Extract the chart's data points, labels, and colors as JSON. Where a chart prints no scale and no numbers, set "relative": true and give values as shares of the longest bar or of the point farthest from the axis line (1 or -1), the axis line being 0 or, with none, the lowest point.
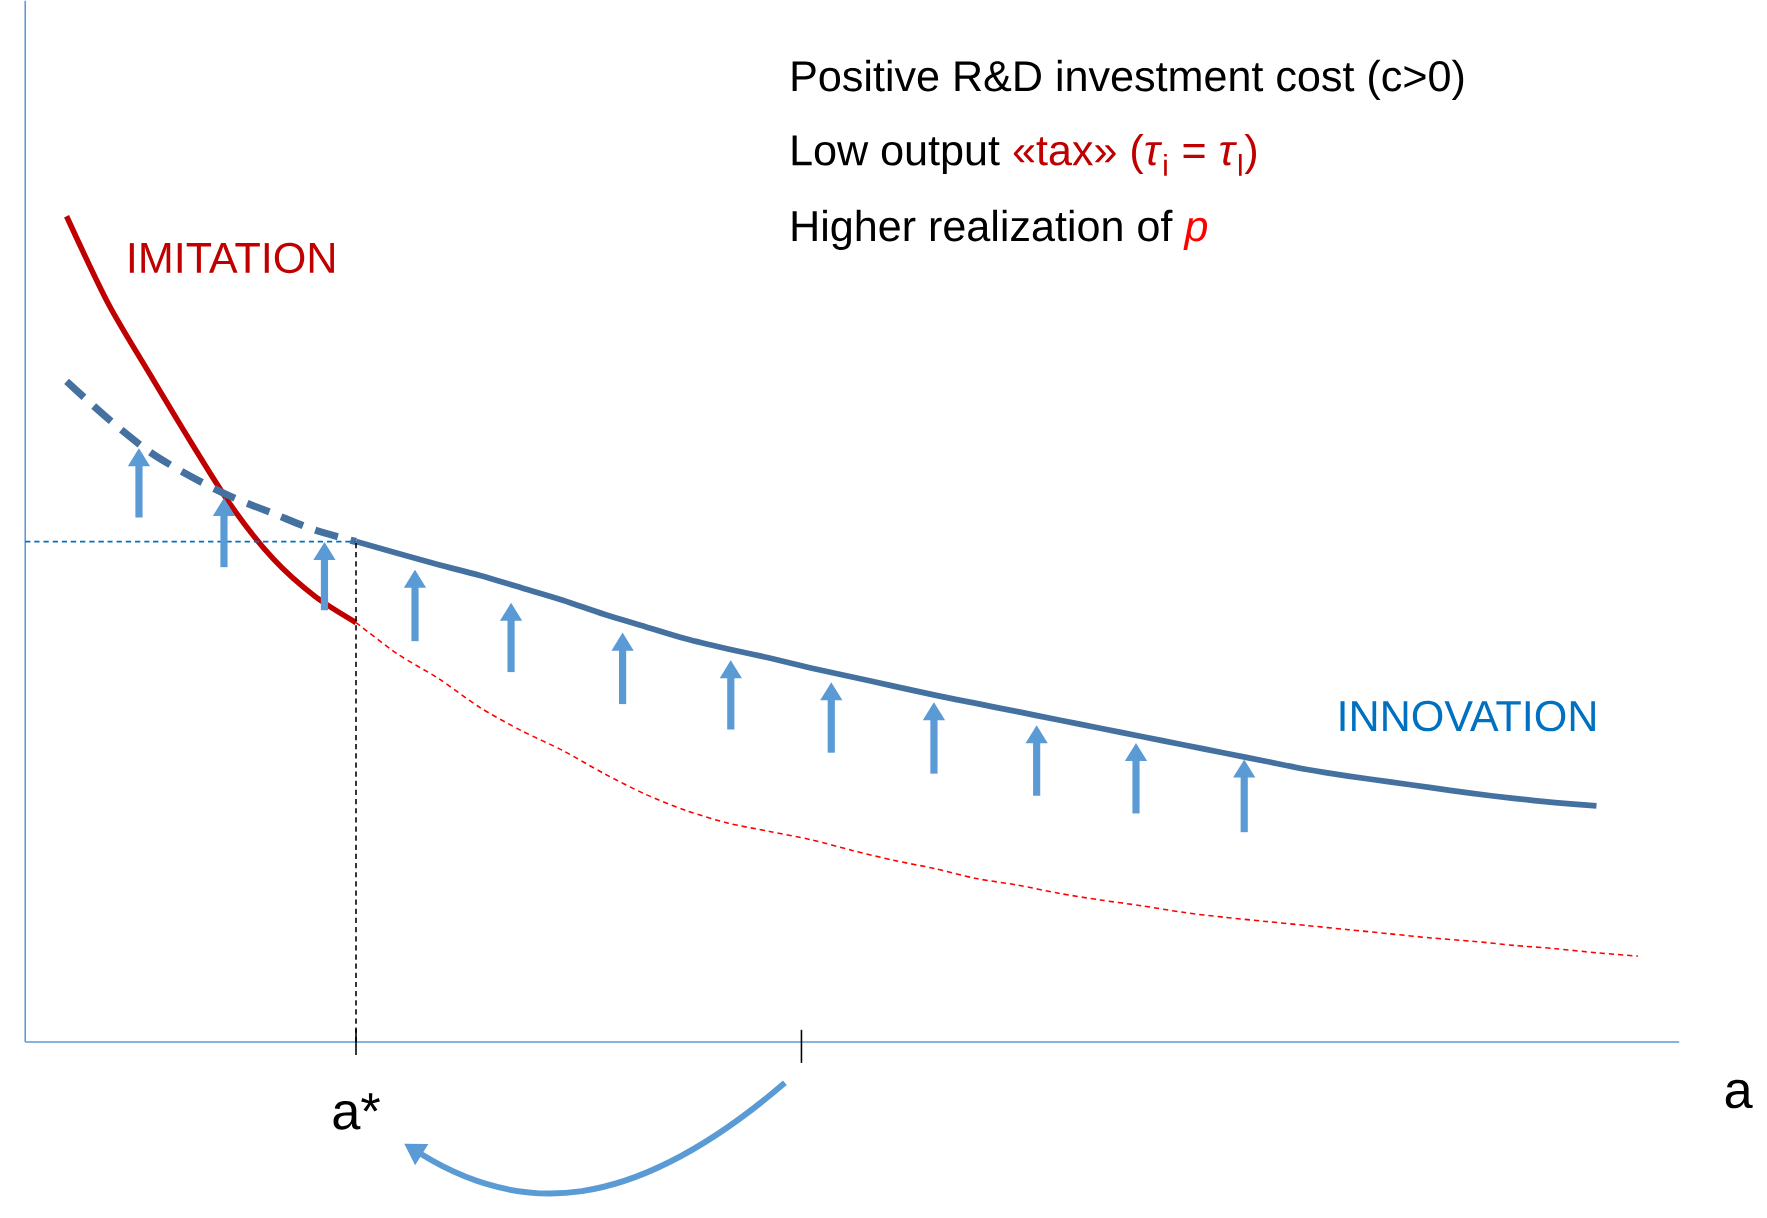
{
  "chart_data": {
    "type": "line",
    "relative": true,
    "xlabel": "a",
    "categories": [
      null,
      null,
      null,
      null,
      null,
      null,
      null,
      null,
      null,
      null,
      null,
      null,
      null,
      null,
      null,
      null,
      null,
      null,
      null,
      null,
      null,
      null,
      null,
      null,
      null,
      null,
      null,
      null,
      null,
      null,
      null,
      null,
      null,
      null,
      null,
      null,
      null,
      null,
      null,
      null,
      null
    ],
    "tick_labels": false,
    "annotations": [
      "Positive R&D investment cost (c>0)",
      "Low output",
      "«tax» (*τ*$_{i}$ = *τ*$_{l}$)",
      "Higher realization of",
      "*p*",
      "a*"
    ],
    "series": [
      {
        "name": "IMITATION",
        "color": "#c00000",
        "line_style": "solid",
        "values": [
          null,
          1.0,
          0.895,
          0.81,
          0.727,
          0.648,
          0.585,
          0.54,
          0.508,
          null,
          null,
          null,
          null,
          null,
          null,
          null,
          null,
          null,
          null,
          null,
          null,
          null,
          null,
          null,
          null,
          null,
          null,
          null,
          null,
          null,
          null,
          null,
          null,
          null,
          null,
          null,
          null,
          null,
          null,
          null,
          null
        ]
      },
      {
        "color": "#ff0000",
        "line_style": "dashed",
        "values": [
          null,
          null,
          null,
          null,
          null,
          null,
          null,
          null,
          0.508,
          0.47,
          0.44,
          0.405,
          0.377,
          0.353,
          0.325,
          0.3,
          0.28,
          0.265,
          0.255,
          0.245,
          0.232,
          0.22,
          0.21,
          0.198,
          0.19,
          0.18,
          0.172,
          0.165,
          0.157,
          0.151,
          0.146,
          0.141,
          0.136,
          0.131,
          0.126,
          0.122,
          0.117,
          0.113,
          0.108,
          0.104,
          null
        ]
      },
      {
        "color": "#44719f",
        "line_style": "dashed",
        "values": [
          null,
          0.8,
          0.755,
          0.715,
          0.685,
          0.66,
          0.64,
          0.62,
          0.606,
          null,
          null,
          null,
          null,
          null,
          null,
          null,
          null,
          null,
          null,
          null,
          null,
          null,
          null,
          null,
          null,
          null,
          null,
          null,
          null,
          null,
          null,
          null,
          null,
          null,
          null,
          null,
          null,
          null,
          null,
          null,
          null
        ]
      },
      {
        "name": "INNOVATION",
        "color": "#44719f",
        "line_style": "solid",
        "values": [
          null,
          null,
          null,
          null,
          null,
          null,
          null,
          null,
          0.606,
          0.592,
          0.578,
          0.565,
          0.55,
          0.535,
          0.518,
          0.503,
          0.488,
          0.476,
          0.465,
          0.453,
          0.442,
          0.431,
          0.42,
          0.41,
          0.4,
          0.39,
          0.38,
          0.37,
          0.36,
          0.35,
          0.34,
          0.33,
          0.322,
          0.315,
          0.308,
          0.301,
          0.295,
          0.29,
          0.286,
          null,
          null
        ]
      },
      {
        "color": "#0070c0",
        "line_style": "dashed",
        "values": [
          0.606,
          0.606,
          0.606,
          0.606,
          0.606,
          0.606,
          0.606,
          0.606,
          0.606,
          null,
          null,
          null,
          null,
          null,
          null,
          null,
          null,
          null,
          null,
          null,
          null,
          null,
          null,
          null,
          null,
          null,
          null,
          null,
          null,
          null,
          null,
          null,
          null,
          null,
          null,
          null,
          null,
          null,
          null,
          null,
          null
        ]
      }
    ]
  }
}
